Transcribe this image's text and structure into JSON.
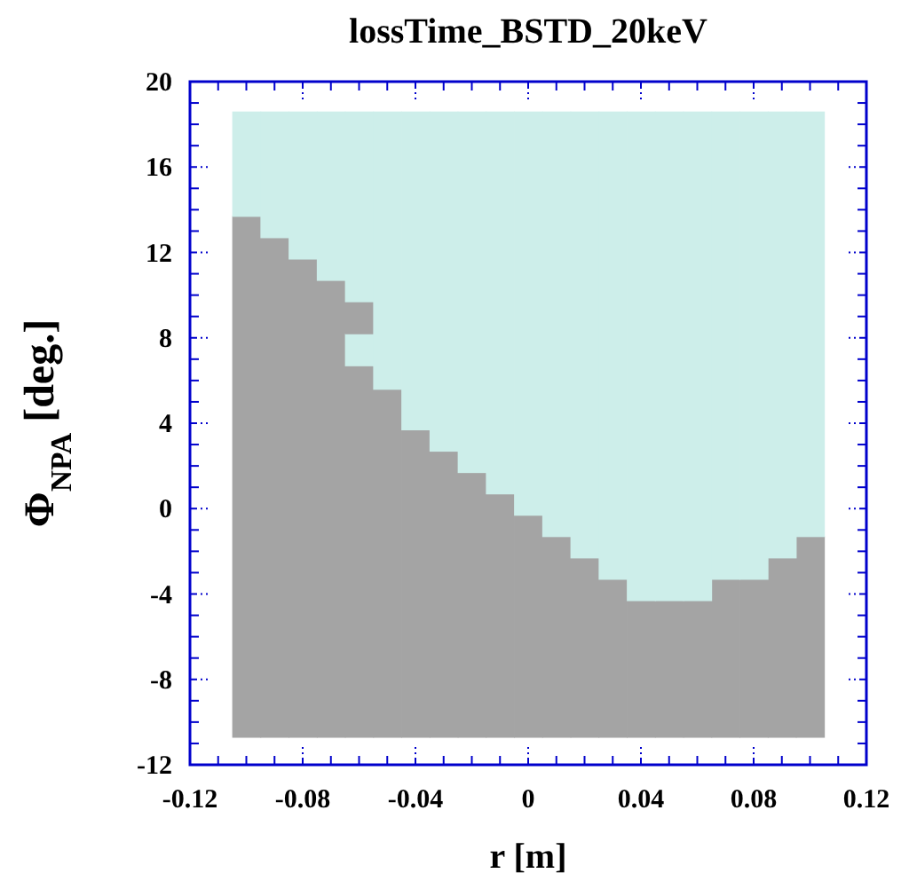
{
  "chart_data": {
    "type": "bar",
    "title": "lossTime_BSTD_20keV",
    "xlabel": "r [m]",
    "ylabel": "Φ$_{NPA}$  [deg.]",
    "x": [
      -0.1,
      -0.09,
      -0.08,
      -0.07,
      -0.06,
      -0.05,
      -0.04,
      -0.03,
      -0.02,
      -0.01,
      0,
      0.01,
      0.02,
      0.03,
      0.04,
      0.05,
      0.06,
      0.07,
      0.08,
      0.09,
      0.1
    ],
    "series": [
      {
        "color": "#a4a4a4",
        "base": [
          -10.7,
          -10.7,
          -10.7,
          -10.7,
          -10.7,
          -10.7,
          -10.7,
          -10.7,
          -10.7,
          -10.7,
          -10.7,
          -10.7,
          -10.7,
          -10.7,
          -10.7,
          -10.7,
          -10.7,
          -10.7,
          -10.7,
          -10.7,
          -10.7
        ],
        "values": [
          24.4,
          23.4,
          22.4,
          21.4,
          17.4,
          16.3,
          14.4,
          13.4,
          12.4,
          11.4,
          10.4,
          9.4,
          8.4,
          7.4,
          6.4,
          6.4,
          6.4,
          7.4,
          7.4,
          8.4,
          9.4
        ]
      },
      {
        "color": "#cdeeea",
        "base": [
          null,
          null,
          null,
          null,
          6.7,
          null,
          null,
          null,
          null,
          null,
          null,
          null,
          null,
          null,
          null,
          null,
          null,
          null,
          null,
          null,
          null
        ],
        "values": [
          null,
          null,
          null,
          null,
          1.5,
          null,
          null,
          null,
          null,
          null,
          null,
          null,
          null,
          null,
          null,
          null,
          null,
          null,
          null,
          null,
          null
        ]
      },
      {
        "color": "#a4a4a4",
        "base": [
          null,
          null,
          null,
          null,
          8.2,
          null,
          null,
          null,
          null,
          null,
          null,
          null,
          null,
          null,
          null,
          null,
          null,
          null,
          null,
          null,
          null
        ],
        "values": [
          null,
          null,
          null,
          null,
          1.5,
          null,
          null,
          null,
          null,
          null,
          null,
          null,
          null,
          null,
          null,
          null,
          null,
          null,
          null,
          null,
          null
        ]
      },
      {
        "color": "#cdeeea",
        "base": [
          13.7,
          12.7,
          11.7,
          10.7,
          9.7,
          5.6,
          3.7,
          2.7,
          1.7,
          0.7,
          -0.3,
          -1.3,
          -2.3,
          -3.3,
          -4.3,
          -4.3,
          -4.3,
          -3.3,
          -3.3,
          -2.3,
          -1.3
        ],
        "values": [
          4.9,
          5.9,
          6.9,
          7.9,
          8.9,
          13.0,
          14.9,
          15.9,
          16.9,
          17.9,
          18.9,
          19.9,
          20.9,
          21.9,
          22.9,
          22.9,
          22.9,
          21.9,
          21.9,
          20.9,
          19.9
        ]
      }
    ],
    "xlim": [
      -0.12,
      0.12
    ],
    "xticks": [
      -0.12,
      {
        "value": -0.11,
        "label": null
      },
      {
        "value": -0.1,
        "label": null
      },
      {
        "value": -0.09,
        "label": null
      },
      -0.08,
      {
        "value": -0.07,
        "label": null
      },
      {
        "value": -0.06,
        "label": null
      },
      {
        "value": -0.05,
        "label": null
      },
      -0.04,
      {
        "value": -0.03,
        "label": null
      },
      {
        "value": -0.02,
        "label": null
      },
      {
        "value": -0.01,
        "label": null
      },
      0,
      {
        "value": 0.01,
        "label": null
      },
      {
        "value": 0.02,
        "label": null
      },
      {
        "value": 0.03,
        "label": null
      },
      0.04,
      {
        "value": 0.05,
        "label": null
      },
      {
        "value": 0.06,
        "label": null
      },
      {
        "value": 0.07,
        "label": null
      },
      0.08,
      {
        "value": 0.09,
        "label": null
      },
      {
        "value": 0.1,
        "label": null
      },
      {
        "value": 0.11,
        "label": null
      },
      0.12
    ],
    "ylim": [
      -12,
      20
    ],
    "yticks": [
      -12,
      {
        "value": -11,
        "label": null
      },
      {
        "value": -10,
        "label": null
      },
      {
        "value": -9,
        "label": null
      },
      -8,
      {
        "value": -7,
        "label": null
      },
      {
        "value": -6,
        "label": null
      },
      {
        "value": -5,
        "label": null
      },
      -4,
      {
        "value": -3,
        "label": null
      },
      {
        "value": -2,
        "label": null
      },
      {
        "value": -1,
        "label": null
      },
      0,
      {
        "value": 1,
        "label": null
      },
      {
        "value": 2,
        "label": null
      },
      {
        "value": 3,
        "label": null
      },
      4,
      {
        "value": 5,
        "label": null
      },
      {
        "value": 6,
        "label": null
      },
      {
        "value": 7,
        "label": null
      },
      8,
      {
        "value": 9,
        "label": null
      },
      {
        "value": 10,
        "label": null
      },
      {
        "value": 11,
        "label": null
      },
      12,
      {
        "value": 13,
        "label": null
      },
      {
        "value": 14,
        "label": null
      },
      {
        "value": 15,
        "label": null
      },
      16,
      {
        "value": 17,
        "label": null
      },
      {
        "value": 18,
        "label": null
      },
      {
        "value": 19,
        "label": null
      },
      20
    ],
    "grid": false
  }
}
